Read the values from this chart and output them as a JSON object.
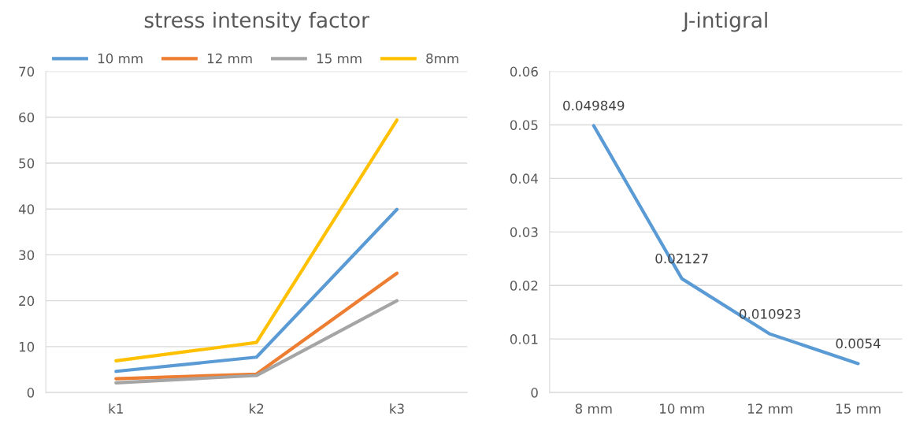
{
  "chart_data": [
    {
      "type": "line",
      "title": "stress intensity factor",
      "categories": [
        "k1",
        "k2",
        "k3"
      ],
      "ylim": [
        0,
        70
      ],
      "yticks": [
        0,
        10,
        20,
        30,
        40,
        50,
        60,
        70
      ],
      "grid": "y",
      "legend": "top",
      "series": [
        {
          "name": "10 mm",
          "color": "#5b9bd5",
          "values": [
            4.6,
            7.7,
            39.9
          ]
        },
        {
          "name": "12 mm",
          "color": "#ed7d31",
          "values": [
            3.0,
            4.0,
            26
          ]
        },
        {
          "name": "15 mm",
          "color": "#a5a5a5",
          "values": [
            2.1,
            3.7,
            20.0
          ]
        },
        {
          "name": "8mm",
          "color": "#ffc000",
          "values": [
            6.9,
            10.9,
            59.4
          ]
        }
      ]
    },
    {
      "type": "line",
      "title": "J-intigral",
      "categories": [
        "8 mm",
        "10 mm",
        "12 mm",
        "15 mm"
      ],
      "ylim": [
        0,
        0.06
      ],
      "yticks": [
        0,
        0.01,
        0.02,
        0.03,
        0.04,
        0.05,
        0.06
      ],
      "grid": "y",
      "data_labels": true,
      "series": [
        {
          "color": "#5b9bd5",
          "values": [
            0.049849,
            0.02127,
            0.010923,
            0.0054
          ]
        }
      ]
    }
  ]
}
